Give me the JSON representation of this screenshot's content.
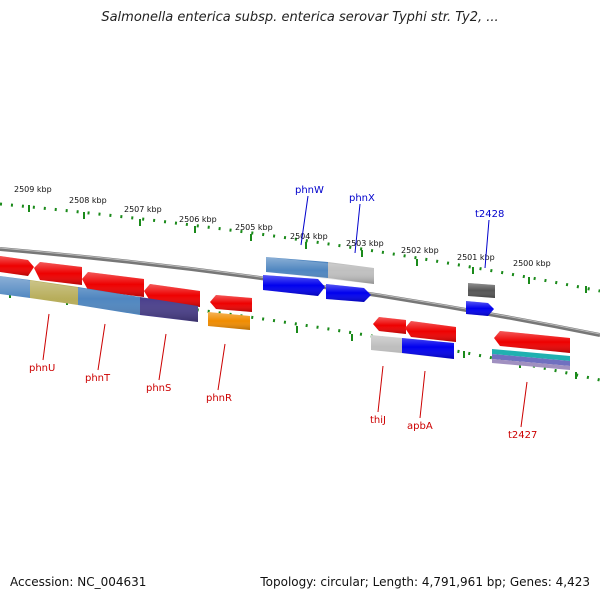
{
  "title": "Salmonella enterica subsp. enterica serovar Typhi str. Ty2, ...",
  "footer": {
    "accession": "Accession: NC_004631",
    "topology": "Topology: circular; Length: 4,791,961 bp; Genes: 4,423"
  },
  "colors": {
    "backbone": "#777777",
    "scale_dots": "#1a8a1a",
    "label_top": "#0000cc",
    "label_bottom": "#cc0000"
  },
  "scale_labels": [
    "2509 kbp",
    "2508 kbp",
    "2507 kbp",
    "2506 kbp",
    "2505 kbp",
    "2504 kbp",
    "2503 kbp",
    "2502 kbp",
    "2501 kbp",
    "2500 kbp"
  ],
  "genes_top": [
    "phnW",
    "phnX",
    "t2428"
  ],
  "genes_bottom": [
    "phnU",
    "phnT",
    "phnS",
    "phnR",
    "thiJ",
    "apbA",
    "t2427"
  ]
}
